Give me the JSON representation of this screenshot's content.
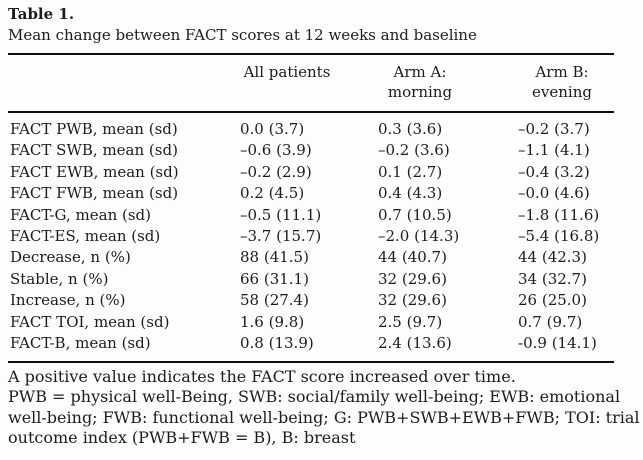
{
  "page": {
    "title": "Table 1.",
    "caption": "Mean change between FACT scores at 12 weeks and baseline"
  },
  "table": {
    "column_headers": {
      "all_patients": "All patients",
      "arm_a": [
        "Arm A:",
        "morning"
      ],
      "arm_b": [
        "Arm B:",
        "evening"
      ]
    },
    "rows": [
      {
        "label": "FACT PWB, mean (sd)",
        "all_patients": "0.0 (3.7)",
        "arm_a": "0.3 (3.6)",
        "arm_b": "–0.2 (3.7)"
      },
      {
        "label": "FACT SWB, mean (sd)",
        "all_patients": "–0.6 (3.9)",
        "arm_a": "–0.2 (3.6)",
        "arm_b": "–1.1 (4.1)"
      },
      {
        "label": "FACT EWB, mean (sd)",
        "all_patients": "–0.2 (2.9)",
        "arm_a": "0.1 (2.7)",
        "arm_b": "–0.4 (3.2)"
      },
      {
        "label": "FACT FWB, mean (sd)",
        "all_patients": "0.2 (4.5)",
        "arm_a": "0.4 (4.3)",
        "arm_b": "–0.0 (4.6)"
      },
      {
        "label": "FACT-G, mean (sd)",
        "all_patients": "–0.5 (11.1)",
        "arm_a": "0.7 (10.5)",
        "arm_b": "–1.8 (11.6)"
      },
      {
        "label": "FACT-ES, mean (sd)",
        "all_patients": "–3.7 (15.7)",
        "arm_a": "–2.0 (14.3)",
        "arm_b": "–5.4 (16.8)"
      },
      {
        "label": "Decrease, n (%)",
        "all_patients": "88 (41.5)",
        "arm_a": "44 (40.7)",
        "arm_b": "44 (42.3)"
      },
      {
        "label": "Stable, n (%)",
        "all_patients": "66 (31.1)",
        "arm_a": "32 (29.6)",
        "arm_b": "34 (32.7)"
      },
      {
        "label": "Increase, n (%)",
        "all_patients": "58 (27.4)",
        "arm_a": "32 (29.6)",
        "arm_b": "26 (25.0)"
      },
      {
        "label": "FACT TOI, mean (sd)",
        "all_patients": "1.6 (9.8)",
        "arm_a": "2.5 (9.7)",
        "arm_b": "0.7 (9.7)"
      },
      {
        "label": "FACT-B, mean (sd)",
        "all_patients": "0.8 (13.9)",
        "arm_a": "2.4 (13.6)",
        "arm_b": "-0.9 (14.1)"
      }
    ]
  },
  "footnotes": {
    "lines": [
      "A positive value indicates the FACT score increased over time.",
      "PWB = physical well-Being, SWB: social/family well-being; EWB: emotional",
      "well-being; FWB: functional well-being; G: PWB+SWB+EWB+FWB; TOI: trial",
      "outcome index (PWB+FWB = B), B: breast"
    ]
  },
  "colors": {
    "text": "#1c1c1e",
    "rule": "#0d0d0d",
    "background": "#fdfdfc"
  }
}
